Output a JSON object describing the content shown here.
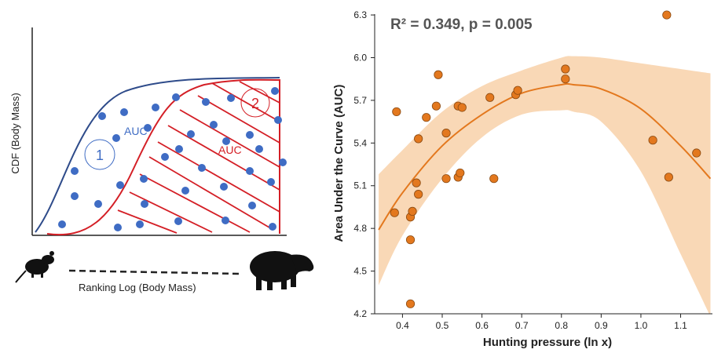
{
  "diagram": {
    "ylabel": "CDF (Body Mass)",
    "xlabel": "Ranking Log (Body Mass)",
    "auc_label_1": "AUC",
    "auc_label_2": "AUC",
    "region_1": "1",
    "region_2": "2",
    "small_animal_icon": "rodent-silhouette-icon",
    "large_animal_icon": "tapir-silhouette-icon",
    "colors": {
      "curve_1": "#2e4b8a",
      "curve_2": "#d41f26",
      "dots": "#3f6cc4"
    }
  },
  "chart_data": {
    "type": "scatter",
    "annotation": "R² = 0.349, p = 0.005",
    "xlabel": "Hunting pressure (ln x)",
    "ylabel": "Area Under the Curve (AUC)",
    "xlim": [
      0.33,
      1.18
    ],
    "ylim": [
      4.2,
      6.35
    ],
    "xticks": [
      0.4,
      0.5,
      0.6,
      0.7,
      0.8,
      0.9,
      1.0,
      1.1
    ],
    "xtick_labels": [
      "0.4",
      "0.5",
      "0.6",
      "0.7",
      "0.8",
      "0.9",
      "1.0",
      "1.1"
    ],
    "yticks": [
      4.2,
      4.5,
      4.8,
      5.1,
      5.4,
      5.7,
      6.0,
      6.3
    ],
    "ytick_labels": [
      "4.2",
      "4.5",
      "4.8",
      "5.1",
      "5.4",
      "5.7",
      "6.0",
      "6.3"
    ],
    "points": [
      {
        "x": 0.38,
        "y": 4.91
      },
      {
        "x": 0.385,
        "y": 5.62
      },
      {
        "x": 0.42,
        "y": 4.27
      },
      {
        "x": 0.42,
        "y": 4.72
      },
      {
        "x": 0.42,
        "y": 4.88
      },
      {
        "x": 0.425,
        "y": 4.92
      },
      {
        "x": 0.435,
        "y": 5.12
      },
      {
        "x": 0.44,
        "y": 5.04
      },
      {
        "x": 0.44,
        "y": 5.43
      },
      {
        "x": 0.46,
        "y": 5.58
      },
      {
        "x": 0.485,
        "y": 5.66
      },
      {
        "x": 0.49,
        "y": 5.88
      },
      {
        "x": 0.51,
        "y": 5.15
      },
      {
        "x": 0.51,
        "y": 5.47
      },
      {
        "x": 0.54,
        "y": 5.66
      },
      {
        "x": 0.54,
        "y": 5.16
      },
      {
        "x": 0.545,
        "y": 5.19
      },
      {
        "x": 0.55,
        "y": 5.65
      },
      {
        "x": 0.62,
        "y": 5.72
      },
      {
        "x": 0.63,
        "y": 5.15
      },
      {
        "x": 0.685,
        "y": 5.74
      },
      {
        "x": 0.69,
        "y": 5.77
      },
      {
        "x": 0.81,
        "y": 5.92
      },
      {
        "x": 0.81,
        "y": 5.85
      },
      {
        "x": 1.03,
        "y": 5.42
      },
      {
        "x": 1.065,
        "y": 6.3
      },
      {
        "x": 1.07,
        "y": 5.16
      },
      {
        "x": 1.14,
        "y": 5.33
      }
    ],
    "fit": {
      "x": [
        0.34,
        0.4,
        0.5,
        0.6,
        0.7,
        0.8,
        0.83,
        0.9,
        1.0,
        1.1,
        1.175
      ],
      "y": [
        4.79,
        5.05,
        5.38,
        5.6,
        5.75,
        5.81,
        5.81,
        5.78,
        5.64,
        5.38,
        5.15
      ],
      "lower": [
        4.4,
        4.75,
        5.15,
        5.44,
        5.6,
        5.63,
        5.62,
        5.55,
        5.2,
        4.62,
        4.18
      ],
      "upper": [
        5.18,
        5.35,
        5.62,
        5.8,
        5.91,
        6.0,
        6.01,
        6.0,
        5.96,
        5.92,
        5.89
      ]
    },
    "colors": {
      "points": "#e3781e",
      "point_edge": "#8a4a12",
      "fit_line": "#e3781e",
      "ci_band": "#f9d8b6"
    }
  }
}
